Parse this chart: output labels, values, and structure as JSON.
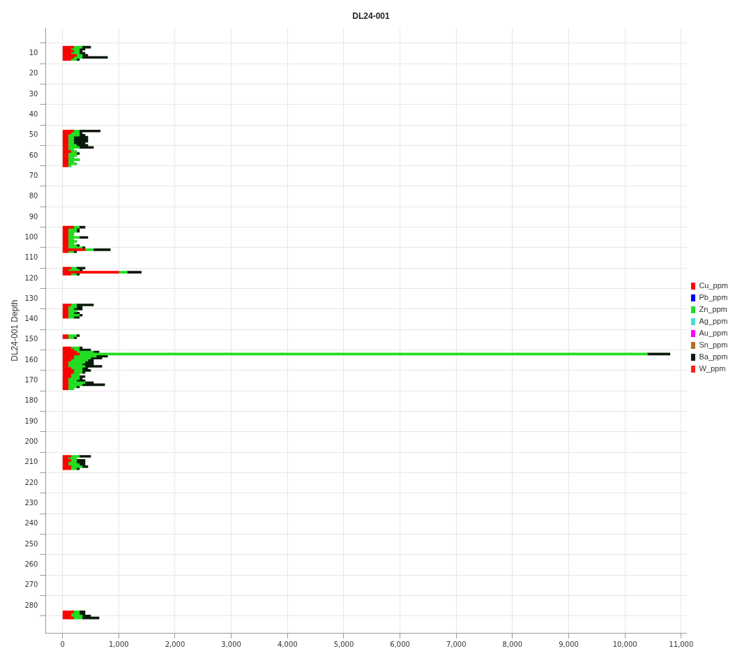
{
  "chart_data": {
    "type": "bar",
    "title": "DL24-001",
    "ylabel": "DL24-001 Depth",
    "orientation": "horizontal",
    "stacked": true,
    "x": [
      7,
      8,
      9,
      10,
      11,
      12,
      13,
      48,
      49,
      50,
      51,
      52,
      53,
      54,
      55,
      56,
      57,
      58,
      59,
      60,
      61,
      62,
      63,
      64,
      65,
      95,
      96,
      97,
      98,
      99,
      100,
      101,
      102,
      103,
      104,
      105,
      106,
      107,
      115,
      116,
      117,
      118,
      133,
      134,
      135,
      136,
      137,
      138,
      139,
      148,
      149,
      154,
      155,
      156,
      157,
      158,
      159,
      160,
      161,
      162,
      163,
      164,
      165,
      166,
      167,
      168,
      169,
      170,
      171,
      172,
      173,
      174,
      207,
      208,
      209,
      210,
      211,
      212,
      213,
      283,
      284,
      285,
      286
    ],
    "series": [
      {
        "name": "Cu_ppm",
        "color": "#ff0000",
        "values": [
          200,
          150,
          200,
          150,
          250,
          200,
          150,
          200,
          150,
          100,
          100,
          100,
          100,
          100,
          100,
          100,
          100,
          150,
          100,
          100,
          100,
          100,
          100,
          100,
          100,
          200,
          100,
          100,
          100,
          100,
          100,
          100,
          100,
          100,
          100,
          100,
          400,
          100,
          150,
          100,
          1000,
          150,
          150,
          100,
          100,
          100,
          100,
          100,
          100,
          100,
          100,
          150,
          200,
          250,
          300,
          200,
          200,
          150,
          100,
          100,
          100,
          150,
          200,
          200,
          150,
          150,
          100,
          100,
          100,
          100,
          100,
          100,
          150,
          100,
          150,
          100,
          100,
          150,
          150,
          200,
          150,
          150,
          200
        ]
      },
      {
        "name": "Pb_ppm",
        "color": "#0000ff",
        "values": [
          null,
          null,
          null,
          null,
          null,
          null,
          null,
          null,
          null,
          null,
          null,
          null,
          null,
          null,
          null,
          null,
          null,
          null,
          null,
          null,
          null,
          null,
          null,
          null,
          null,
          null,
          null,
          null,
          null,
          null,
          null,
          null,
          null,
          null,
          null,
          null,
          null,
          null,
          null,
          null,
          null,
          null,
          null,
          null,
          null,
          null,
          null,
          null,
          null,
          null,
          null,
          null,
          null,
          null,
          null,
          null,
          null,
          null,
          null,
          null,
          null,
          null,
          null,
          null,
          null,
          null,
          null,
          null,
          null,
          null,
          null,
          null,
          null,
          null,
          null,
          null,
          null,
          null,
          null,
          null,
          null,
          null,
          null
        ]
      },
      {
        "name": "Zn_ppm",
        "color": "#22dd22",
        "values": [
          150,
          150,
          100,
          150,
          100,
          150,
          100,
          100,
          150,
          200,
          100,
          100,
          100,
          100,
          150,
          200,
          100,
          100,
          150,
          150,
          100,
          200,
          100,
          150,
          50,
          100,
          150,
          150,
          100,
          100,
          200,
          100,
          150,
          100,
          150,
          250,
          150,
          100,
          100,
          200,
          150,
          100,
          100,
          150,
          100,
          150,
          100,
          200,
          100,
          150,
          100,
          150,
          100,
          300,
          10100,
          400,
          300,
          300,
          300,
          250,
          300,
          200,
          150,
          150,
          150,
          150,
          200,
          150,
          300,
          250,
          150,
          100,
          150,
          150,
          100,
          150,
          200,
          200,
          100,
          100,
          150,
          200,
          150
        ]
      },
      {
        "name": "Ag_ppm",
        "color": "#40e0d0",
        "values": [
          null,
          null,
          null,
          null,
          null,
          null,
          null,
          null,
          null,
          null,
          null,
          null,
          null,
          null,
          null,
          null,
          null,
          null,
          null,
          null,
          null,
          null,
          null,
          null,
          null,
          null,
          null,
          null,
          null,
          null,
          null,
          null,
          null,
          null,
          null,
          null,
          null,
          null,
          null,
          null,
          null,
          null,
          null,
          null,
          null,
          null,
          null,
          null,
          null,
          null,
          null,
          null,
          null,
          null,
          null,
          null,
          null,
          null,
          null,
          null,
          null,
          null,
          null,
          null,
          null,
          null,
          null,
          null,
          null,
          null,
          null,
          null,
          null,
          null,
          null,
          null,
          null,
          null,
          null,
          null,
          null,
          null,
          null
        ]
      },
      {
        "name": "Au_ppm",
        "color": "#ff00ff",
        "values": [
          null,
          null,
          null,
          null,
          null,
          null,
          null,
          null,
          null,
          null,
          null,
          null,
          null,
          null,
          null,
          null,
          null,
          null,
          null,
          null,
          null,
          null,
          null,
          null,
          null,
          null,
          null,
          null,
          null,
          null,
          null,
          null,
          null,
          null,
          null,
          null,
          null,
          null,
          null,
          null,
          null,
          null,
          null,
          null,
          null,
          null,
          null,
          null,
          null,
          null,
          null,
          null,
          null,
          null,
          null,
          null,
          null,
          null,
          null,
          null,
          null,
          null,
          null,
          null,
          null,
          null,
          null,
          null,
          null,
          null,
          null,
          null,
          null,
          null,
          null,
          null,
          null,
          null,
          null,
          null,
          null,
          null,
          null
        ]
      },
      {
        "name": "Sn_ppm",
        "color": "#b07020",
        "values": [
          null,
          null,
          null,
          null,
          null,
          null,
          null,
          null,
          null,
          null,
          null,
          null,
          null,
          null,
          null,
          null,
          null,
          null,
          null,
          null,
          null,
          null,
          null,
          null,
          null,
          null,
          null,
          null,
          null,
          null,
          null,
          null,
          null,
          null,
          null,
          null,
          null,
          null,
          null,
          null,
          null,
          null,
          null,
          null,
          null,
          null,
          null,
          null,
          null,
          null,
          null,
          null,
          null,
          null,
          null,
          null,
          null,
          null,
          null,
          null,
          null,
          null,
          null,
          null,
          null,
          null,
          null,
          null,
          null,
          null,
          null,
          null,
          null,
          null,
          null,
          null,
          null,
          null,
          null,
          null,
          null,
          null,
          null
        ]
      },
      {
        "name": "Ba_ppm",
        "color": "#0a1a0a",
        "values": [
          150,
          100,
          50,
          100,
          100,
          450,
          50,
          370,
          50,
          100,
          250,
          250,
          250,
          200,
          200,
          250,
          null,
          0,
          50,
          0,
          0,
          0,
          0,
          0,
          0,
          100,
          50,
          50,
          0,
          null,
          150,
          null,
          0,
          null,
          50,
          50,
          300,
          50,
          150,
          50,
          250,
          50,
          300,
          100,
          150,
          0,
          100,
          50,
          100,
          50,
          50,
          50,
          200,
          100,
          400,
          200,
          200,
          100,
          150,
          200,
          300,
          100,
          150,
          50,
          0,
          100,
          50,
          150,
          150,
          400,
          50,
          0,
          200,
          null,
          150,
          150,
          100,
          100,
          50,
          100,
          100,
          150,
          300
        ]
      },
      {
        "name": "W_ppm",
        "color": "#ff2020",
        "values": [
          null,
          null,
          null,
          null,
          null,
          null,
          null,
          null,
          null,
          null,
          null,
          null,
          null,
          null,
          null,
          null,
          null,
          null,
          null,
          null,
          null,
          null,
          null,
          null,
          null,
          null,
          null,
          null,
          null,
          null,
          null,
          null,
          null,
          null,
          null,
          null,
          null,
          null,
          null,
          null,
          null,
          null,
          null,
          null,
          null,
          null,
          null,
          null,
          null,
          null,
          null,
          null,
          null,
          null,
          null,
          null,
          null,
          null,
          null,
          null,
          null,
          null,
          null,
          null,
          null,
          null,
          null,
          null,
          null,
          null,
          null,
          null,
          null,
          null,
          null,
          null,
          null,
          null,
          null,
          null,
          null,
          null,
          null
        ]
      }
    ],
    "xlim": [
      -300,
      11100
    ],
    "xticks": [
      0,
      {
        "value": 1000,
        "label": "1,000"
      },
      {
        "value": 2000,
        "label": "2,000"
      },
      {
        "value": 3000,
        "label": "3,000"
      },
      {
        "value": 4000,
        "label": "4,000"
      },
      {
        "value": 5000,
        "label": "5,000"
      },
      {
        "value": 6000,
        "label": "6,000"
      },
      {
        "value": 7000,
        "label": "7,000"
      },
      {
        "value": 8000,
        "label": "8,000"
      },
      {
        "value": 9000,
        "label": "9,000"
      },
      {
        "value": 10000,
        "label": "10,000"
      },
      {
        "value": 11000,
        "label": "11,000"
      }
    ],
    "ylim": [
      288,
      3
    ],
    "yticks": [
      10,
      20,
      30,
      40,
      50,
      60,
      70,
      80,
      90,
      100,
      110,
      120,
      130,
      140,
      150,
      160,
      170,
      180,
      190,
      200,
      210,
      220,
      230,
      240,
      250,
      260,
      270,
      280
    ],
    "grid": true,
    "legend": "right"
  }
}
